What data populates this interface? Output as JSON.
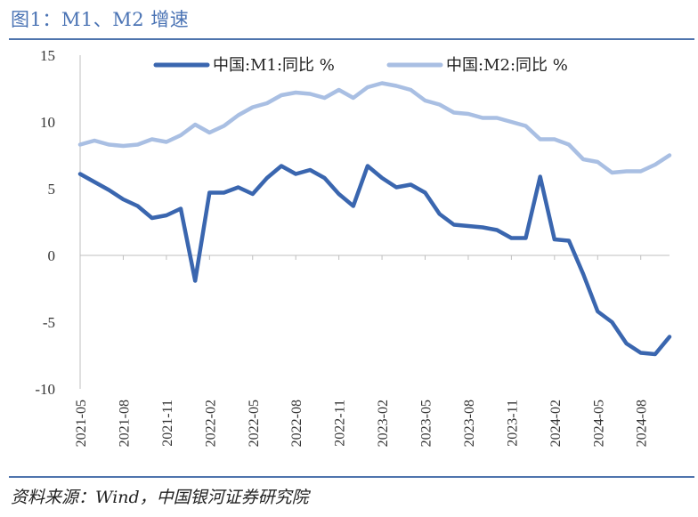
{
  "figure": {
    "title": "图1：M1、M2 增速",
    "source": "资料来源：Wind，中国银河证券研究院"
  },
  "colors": {
    "m1": "#3a66af",
    "m2": "#a9bfe3",
    "rule": "#4f74ad",
    "title": "#4a73b4"
  },
  "chart_data": {
    "type": "line",
    "title": "",
    "xlabel": "",
    "ylabel": "",
    "ylim": [
      -10,
      15
    ],
    "yticks": [
      "15",
      "10",
      "5",
      "0",
      "-5",
      "-10"
    ],
    "ytick_values": [
      15,
      10,
      5,
      0,
      -5,
      -10
    ],
    "grid": false,
    "legend_position": "top",
    "x": [
      "2021-05",
      "2021-06",
      "2021-07",
      "2021-08",
      "2021-09",
      "2021-10",
      "2021-11",
      "2021-12",
      "2022-01",
      "2022-02",
      "2022-03",
      "2022-04",
      "2022-05",
      "2022-06",
      "2022-07",
      "2022-08",
      "2022-09",
      "2022-10",
      "2022-11",
      "2022-12",
      "2023-01",
      "2023-02",
      "2023-03",
      "2023-04",
      "2023-05",
      "2023-06",
      "2023-07",
      "2023-08",
      "2023-09",
      "2023-10",
      "2023-11",
      "2023-12",
      "2024-01",
      "2024-02",
      "2024-03",
      "2024-04",
      "2024-05",
      "2024-06",
      "2024-07",
      "2024-08",
      "2024-09",
      "2024-10"
    ],
    "xtick_labels": [
      "2021-05",
      "2021-08",
      "2021-11",
      "2022-02",
      "2022-05",
      "2022-08",
      "2022-11",
      "2023-02",
      "2023-05",
      "2023-08",
      "2023-11",
      "2024-02",
      "2024-05",
      "2024-08"
    ],
    "series": [
      {
        "name": "中国:M1:同比 %",
        "key": "m1",
        "values": [
          6.1,
          5.5,
          4.9,
          4.2,
          3.7,
          2.8,
          3.0,
          3.5,
          -1.9,
          4.7,
          4.7,
          5.1,
          4.6,
          5.8,
          6.7,
          6.1,
          6.4,
          5.8,
          4.6,
          3.7,
          6.7,
          5.8,
          5.1,
          5.3,
          4.7,
          3.1,
          2.3,
          2.2,
          2.1,
          1.9,
          1.3,
          1.3,
          5.9,
          1.2,
          1.1,
          -1.4,
          -4.2,
          -5.0,
          -6.6,
          -7.3,
          -7.4,
          -6.1
        ]
      },
      {
        "name": "中国:M2:同比 %",
        "key": "m2",
        "values": [
          8.3,
          8.6,
          8.3,
          8.2,
          8.3,
          8.7,
          8.5,
          9.0,
          9.8,
          9.2,
          9.7,
          10.5,
          11.1,
          11.4,
          12.0,
          12.2,
          12.1,
          11.8,
          12.4,
          11.8,
          12.6,
          12.9,
          12.7,
          12.4,
          11.6,
          11.3,
          10.7,
          10.6,
          10.3,
          10.3,
          10.0,
          9.7,
          8.7,
          8.7,
          8.3,
          7.2,
          7.0,
          6.2,
          6.3,
          6.3,
          6.8,
          7.5
        ]
      }
    ]
  }
}
